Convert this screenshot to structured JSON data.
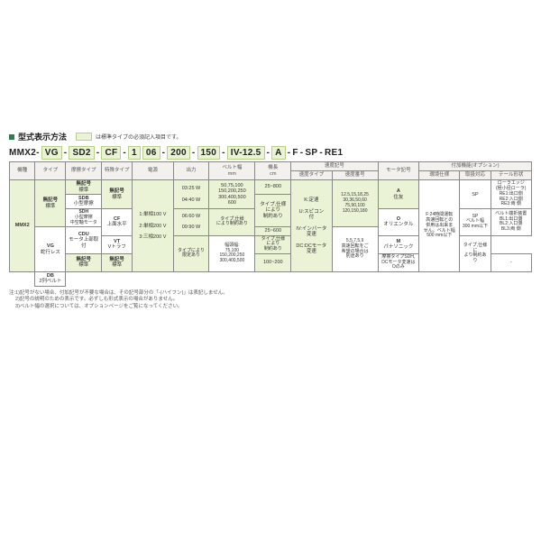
{
  "title": "型式表示方法",
  "legend_text": "は標準タイプの必須記入項目です。",
  "model_segments": [
    "MMX2-",
    "VG",
    "-",
    "SD2",
    "-",
    "CF",
    "-",
    "1",
    "06",
    "-",
    "200",
    "-",
    "150",
    "-",
    "IV-12.5",
    "-",
    "A",
    "-",
    "F",
    "-",
    "SP",
    "-",
    "RE1"
  ],
  "fill_indexes": [
    1,
    3,
    5,
    7,
    8,
    10,
    12,
    14,
    16
  ],
  "headers_row1": [
    "機種",
    "タイプ",
    "摩擦タイプ",
    "特殊タイプ",
    "電源",
    "出力",
    "ベルト幅\nmm",
    "機長\ncm",
    "速度記号",
    "モータ記号",
    "付加機能(オプション)"
  ],
  "headers_speed_sub": [
    "速度タイプ",
    "速度番号"
  ],
  "headers_option_sub": [
    "環境仕様",
    "取扱対応",
    "テール形状"
  ],
  "col1": {
    "kishu": "MMX2",
    "type1_label": "無記号",
    "type1_text": "標準",
    "type2_label": "VG",
    "type2_text": "蛇行レス",
    "type3_label": "DB",
    "type3_text": "2列ベルト"
  },
  "col_friction": {
    "a_label": "無記号",
    "a_text": "標準",
    "b_label": "SDB",
    "b_text": "小型摩擦",
    "c_label": "SDH",
    "c_text": "小型摩擦\n中空軸モータ",
    "d_label": "CDU",
    "d_text": "モータ上部取付",
    "e_label": "無記号",
    "e_text": "標準"
  },
  "col_special": {
    "a_label": "無記号",
    "a_text": "標準",
    "b_label": "CF",
    "b_text": "上面水平",
    "c_label": "VT",
    "c_text": "Vトラフ",
    "d_label": "無記号",
    "d_text": "標準"
  },
  "col_power": {
    "a": "1:単相100 V",
    "b": "2:単相200 V",
    "c": "3:三相200 V"
  },
  "col_output": {
    "a": "03:25 W",
    "b": "04:40 W",
    "c": "06:60 W",
    "d": "09:90 W",
    "e": "タイプにより\n限定あり"
  },
  "col_belt": {
    "a": "50,75,100\n150,200,250\n300,400,500\n600",
    "b": "タイプ,仕様\nにより制約あり",
    "c": "幅頭幅:\n75,100\n150,200,250\n300,400,500"
  },
  "col_length": {
    "a": "25~800",
    "b": "タイプ,仕様\nにより\n制約あり",
    "c": "25~600",
    "d": "タイプ,仕様\nにより\n制約あり",
    "e": "100~200"
  },
  "col_speed_type": {
    "a": "K:定速",
    "b": "U:スピコン\n付",
    "c": "IV:インバータ\n変速",
    "d": "DC:DCモータ\n変速"
  },
  "col_speed_num": {
    "a": "12.5,15,18,25\n30,36,50,60\n75,90,100\n120,150,180",
    "b": "5,5,7,5,9\n高速回転をご\n希望の場合は\n別途あり"
  },
  "col_motor": {
    "a_label": "A",
    "a_text": "住友",
    "b_label": "O",
    "b_text": "オリエンタル",
    "c_label": "M",
    "c_text": "パナソニック",
    "d": "摩擦タイプSDH,\nDCモータ変速は\nOのみ"
  },
  "col_env": {
    "a": "F:24時間運転\n高速回転との\n併用は出来ま\nせん。ベルト幅\n500 mm以下"
  },
  "col_handle": {
    "a": "SP",
    "b": "SP\nベルト幅\n300 mm以下",
    "c": "-"
  },
  "col_tail": {
    "a": "ローラエッジ\n(極小径ローラ)\nRE1:出口側\nRE2:入口側\nRE3:両 側",
    "b": "ベルト端折装置\nBL1:出口側\nBL2:入口側\nBL3:両 側",
    "c": "タイプ,仕様に\nより制約あり",
    "d": "-"
  },
  "notes": [
    "注:1)記号がない場合、付加記号が不要な場合は、その記号部分の「-(ハイフン)」は表記しません。",
    "　 2)記号の説明のための表示です。必ずしも形式表示の場合がありません。",
    "　 3)ベルト幅の選択については、オプションページをご覧になってください。"
  ],
  "colors": {
    "accent_green": "#2e7d4f",
    "fill_bg": "#eaf3d6",
    "fill_border": "#b8cf8a",
    "header_bg": "#f3f1ee",
    "border": "#888888"
  }
}
